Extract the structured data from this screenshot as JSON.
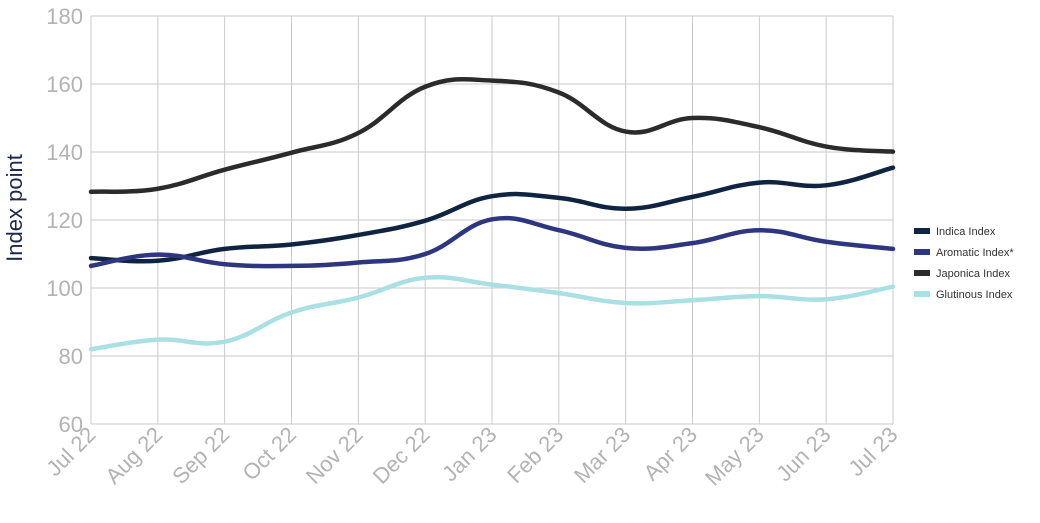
{
  "chart_data": {
    "type": "line",
    "title": "",
    "xlabel": "",
    "ylabel": "Index point",
    "ylim": [
      60,
      180
    ],
    "yticks": [
      60,
      80,
      100,
      120,
      140,
      160,
      180
    ],
    "grid": true,
    "legend_position": "right",
    "categories": [
      "Jul 22",
      "Aug 22",
      "Sep 22",
      "Oct 22",
      "Nov 22",
      "Dec 22",
      "Jan 23",
      "Feb 23",
      "Mar 23",
      "Apr 23",
      "May 23",
      "Jun 23",
      "Jul 23"
    ],
    "series": [
      {
        "name": "Indica Index",
        "color": "#0f2440",
        "values": [
          108.8,
          108.0,
          111.5,
          112.8,
          115.6,
          119.8,
          127.0,
          126.5,
          123.3,
          126.8,
          131.0,
          130.2,
          135.4
        ]
      },
      {
        "name": "Aromatic Index*",
        "color": "#2e3680",
        "values": [
          106.5,
          109.8,
          107.0,
          106.5,
          107.5,
          110.0,
          120.2,
          117.0,
          111.8,
          113.2,
          117.0,
          113.6,
          111.5
        ]
      },
      {
        "name": "Japonica Index",
        "color": "#2b2b2b",
        "values": [
          128.3,
          129.2,
          134.8,
          139.8,
          145.6,
          159.2,
          161.0,
          157.5,
          146.0,
          150.0,
          147.3,
          141.6,
          140.1
        ]
      },
      {
        "name": "Glutinous Index",
        "color": "#a8e0e3",
        "values": [
          82.0,
          84.8,
          84.2,
          92.8,
          97.2,
          103.0,
          101.0,
          98.5,
          95.6,
          96.4,
          97.6,
          96.7,
          100.4
        ]
      }
    ]
  }
}
